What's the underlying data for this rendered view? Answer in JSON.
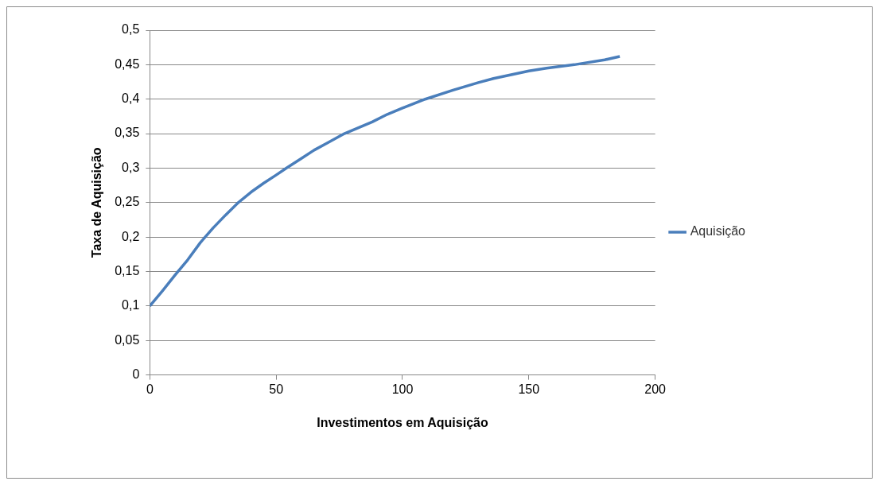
{
  "chart_data": {
    "type": "line",
    "xlabel": "Investimentos em Aquisição",
    "ylabel": "Taxa de Aquisição",
    "series": [
      {
        "name": "Aquisição",
        "color": "#4a7ebb",
        "x": [
          0,
          5,
          10,
          15,
          20,
          25,
          30,
          35,
          40,
          45,
          50,
          54,
          60,
          65,
          70,
          77,
          88,
          94,
          100,
          109,
          120,
          130,
          136,
          150,
          157,
          168,
          180,
          186
        ],
        "values": [
          0.1,
          0.122,
          0.145,
          0.167,
          0.192,
          0.213,
          0.232,
          0.25,
          0.265,
          0.278,
          0.29,
          0.3,
          0.314,
          0.326,
          0.336,
          0.35,
          0.367,
          0.378,
          0.387,
          0.4,
          0.413,
          0.424,
          0.43,
          0.441,
          0.445,
          0.45,
          0.457,
          0.462
        ]
      }
    ],
    "xlim": [
      0,
      200
    ],
    "xticks": [
      0,
      50,
      100,
      150,
      200
    ],
    "ylim": [
      0,
      0.5
    ],
    "yticks": [
      0,
      {
        "value": 0.05,
        "label": "0,05"
      },
      {
        "value": 0.1,
        "label": "0,1"
      },
      {
        "value": 0.15,
        "label": "0,15"
      },
      {
        "value": 0.2,
        "label": "0,2"
      },
      {
        "value": 0.25,
        "label": "0,25"
      },
      {
        "value": 0.3,
        "label": "0,3"
      },
      {
        "value": 0.35,
        "label": "0,35"
      },
      {
        "value": 0.4,
        "label": "0,4"
      },
      {
        "value": 0.45,
        "label": "0,45"
      },
      {
        "value": 0.5,
        "label": "0,5"
      }
    ],
    "grid": "y",
    "legend": "right",
    "marker": "none",
    "line_style": "solid"
  }
}
